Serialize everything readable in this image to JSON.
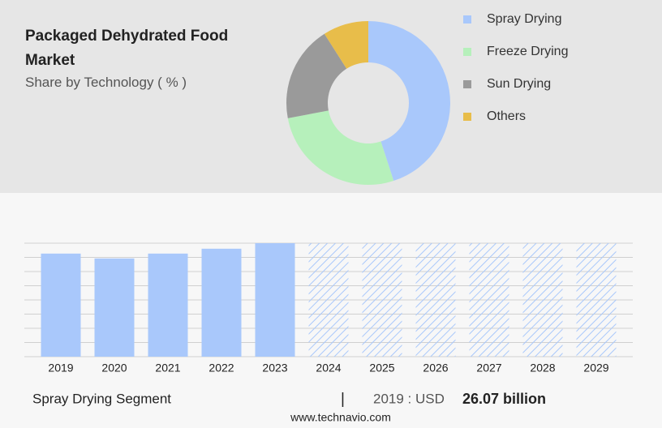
{
  "chart_data": [
    {
      "type": "pie",
      "title": "Packaged Dehydrated Food Market",
      "subtitle": "Share by Technology ( % )",
      "categories": [
        "Spray Drying",
        "Freeze Drying",
        "Sun Drying",
        "Others"
      ],
      "values": [
        45,
        27,
        19,
        9
      ],
      "colors": [
        "#a9c8fb",
        "#b6f0bb",
        "#9a9a9a",
        "#e8bd4a"
      ]
    },
    {
      "type": "bar",
      "categories": [
        "2019",
        "2020",
        "2021",
        "2022",
        "2023",
        "2024",
        "2025",
        "2026",
        "2027",
        "2028",
        "2029"
      ],
      "values": [
        26.07,
        24.84,
        26.07,
        27.3,
        28.7,
        null,
        null,
        null,
        null,
        null,
        null
      ],
      "color": "#a9c8fb",
      "ylim": [
        0,
        28.7
      ],
      "grid": true
    }
  ],
  "footer": {
    "segment": "Spray Drying Segment",
    "separator": "|",
    "year_label": "2019 : USD",
    "value_label": "26.07 billion",
    "source": "www.technavio.com"
  }
}
